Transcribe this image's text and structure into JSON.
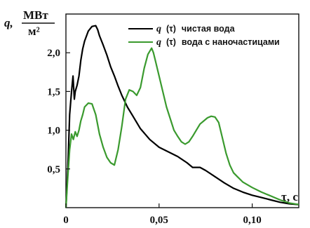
{
  "chart_data": {
    "type": "line",
    "ylabel_symbol": "q,",
    "ylabel_unit_num": "МВт",
    "ylabel_unit_den": "м²",
    "xlabel": "τ, с",
    "xlim": [
      0,
      0.125
    ],
    "ylim": [
      0,
      2.5
    ],
    "x_ticks": [
      0,
      0.05,
      0.1
    ],
    "x_tick_labels": [
      "0",
      "0,05",
      "0,10"
    ],
    "y_ticks": [
      0.5,
      1.0,
      1.5,
      2.0
    ],
    "y_tick_labels": [
      "0,5",
      "1,0",
      "1,5",
      "2,0"
    ],
    "grid": false,
    "legend_position": "top-right",
    "series": [
      {
        "name": "q (τ) чистая вода",
        "legend_q": "q",
        "legend_tau": "(τ)",
        "legend_text": "чистая вода",
        "color": "#000000",
        "x": [
          0,
          0.001,
          0.002,
          0.003,
          0.0038,
          0.0045,
          0.005,
          0.006,
          0.007,
          0.008,
          0.009,
          0.01,
          0.012,
          0.014,
          0.016,
          0.017,
          0.018,
          0.02,
          0.022,
          0.024,
          0.026,
          0.028,
          0.03,
          0.033,
          0.036,
          0.04,
          0.045,
          0.05,
          0.055,
          0.06,
          0.065,
          0.068,
          0.072,
          0.075,
          0.08,
          0.085,
          0.09,
          0.095,
          0.1,
          0.105,
          0.11,
          0.115,
          0.12,
          0.125
        ],
        "y": [
          0,
          0.5,
          1.2,
          1.5,
          1.7,
          1.4,
          1.5,
          1.58,
          1.7,
          1.9,
          2.05,
          2.15,
          2.28,
          2.34,
          2.35,
          2.3,
          2.22,
          2.1,
          1.97,
          1.82,
          1.7,
          1.57,
          1.45,
          1.3,
          1.18,
          1.02,
          0.88,
          0.78,
          0.72,
          0.66,
          0.58,
          0.52,
          0.52,
          0.48,
          0.4,
          0.32,
          0.25,
          0.2,
          0.16,
          0.13,
          0.1,
          0.07,
          0.05,
          0.04
        ]
      },
      {
        "name": "q (τ) вода с наночастицами",
        "legend_q": "q",
        "legend_tau": "(τ)",
        "legend_text": "вода с наночастицами",
        "color": "#3a9a2e",
        "x": [
          0,
          0.001,
          0.002,
          0.003,
          0.004,
          0.005,
          0.006,
          0.007,
          0.008,
          0.009,
          0.01,
          0.012,
          0.014,
          0.016,
          0.018,
          0.02,
          0.022,
          0.024,
          0.026,
          0.028,
          0.03,
          0.032,
          0.034,
          0.036,
          0.038,
          0.04,
          0.042,
          0.044,
          0.046,
          0.047,
          0.048,
          0.05,
          0.052,
          0.054,
          0.056,
          0.058,
          0.06,
          0.062,
          0.064,
          0.066,
          0.068,
          0.07,
          0.072,
          0.074,
          0.076,
          0.078,
          0.08,
          0.082,
          0.084,
          0.086,
          0.088,
          0.09,
          0.092,
          0.095,
          0.1,
          0.105,
          0.11,
          0.115,
          0.12,
          0.125
        ],
        "y": [
          0,
          0.4,
          0.75,
          0.95,
          0.88,
          0.98,
          0.92,
          1.0,
          1.12,
          1.2,
          1.3,
          1.35,
          1.34,
          1.2,
          0.95,
          0.78,
          0.65,
          0.58,
          0.55,
          0.75,
          1.05,
          1.4,
          1.52,
          1.5,
          1.45,
          1.55,
          1.8,
          1.98,
          2.06,
          2.0,
          1.9,
          1.7,
          1.5,
          1.3,
          1.15,
          1.0,
          0.92,
          0.85,
          0.82,
          0.85,
          0.92,
          1.0,
          1.08,
          1.12,
          1.16,
          1.18,
          1.17,
          1.1,
          0.9,
          0.7,
          0.55,
          0.45,
          0.4,
          0.33,
          0.26,
          0.2,
          0.15,
          0.1,
          0.06,
          0.04
        ]
      }
    ]
  }
}
